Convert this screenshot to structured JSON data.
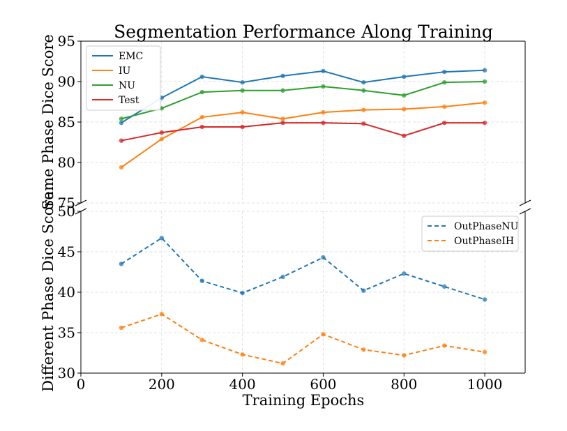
{
  "chart_data": {
    "type": "line",
    "title": "Segmentation Performance Along Training",
    "xlabel": "Training Epochs",
    "xlim": [
      0,
      1100
    ],
    "xticks": [
      0,
      200,
      400,
      600,
      800,
      1000
    ],
    "x": [
      100,
      200,
      300,
      400,
      500,
      600,
      700,
      800,
      900,
      1000
    ],
    "panels": [
      {
        "ylabel": "Same Phase Dice Score",
        "ylim": [
          75,
          95
        ],
        "yticks": [
          75,
          80,
          85,
          90,
          95
        ],
        "legend_position": "top-left",
        "grid": true,
        "series": [
          {
            "name": "EMC",
            "color": "#1f77b4",
            "dash": "solid",
            "values": [
              84.9,
              88.0,
              90.6,
              89.9,
              90.7,
              91.3,
              89.9,
              90.6,
              91.2,
              91.4
            ]
          },
          {
            "name": "IU",
            "color": "#ff7f0e",
            "dash": "solid",
            "values": [
              79.4,
              82.9,
              85.6,
              86.2,
              85.4,
              86.2,
              86.5,
              86.6,
              86.9,
              87.4
            ]
          },
          {
            "name": "NU",
            "color": "#2ca02c",
            "dash": "solid",
            "values": [
              85.4,
              86.7,
              88.7,
              88.9,
              88.9,
              89.4,
              88.9,
              88.3,
              89.9,
              90.0
            ]
          },
          {
            "name": "Test",
            "color": "#d62728",
            "dash": "solid",
            "values": [
              82.7,
              83.7,
              84.4,
              84.4,
              84.9,
              84.9,
              84.8,
              83.3,
              84.9,
              84.9
            ]
          }
        ]
      },
      {
        "ylabel": "Different Phase Dice Score",
        "ylim": [
          30,
          50
        ],
        "yticks": [
          30,
          35,
          40,
          45,
          50
        ],
        "legend_position": "top-right",
        "grid": true,
        "series": [
          {
            "name": "OutPhaseNU",
            "color": "#1f77b4",
            "dash": "dashed",
            "values": [
              43.5,
              46.7,
              41.4,
              39.9,
              41.9,
              44.3,
              40.2,
              42.3,
              40.7,
              39.1
            ]
          },
          {
            "name": "OutPhaseIH",
            "color": "#ff7f0e",
            "dash": "dashed",
            "values": [
              35.6,
              37.3,
              34.1,
              32.3,
              31.2,
              34.8,
              32.9,
              32.2,
              33.4,
              32.6
            ]
          }
        ]
      }
    ]
  }
}
